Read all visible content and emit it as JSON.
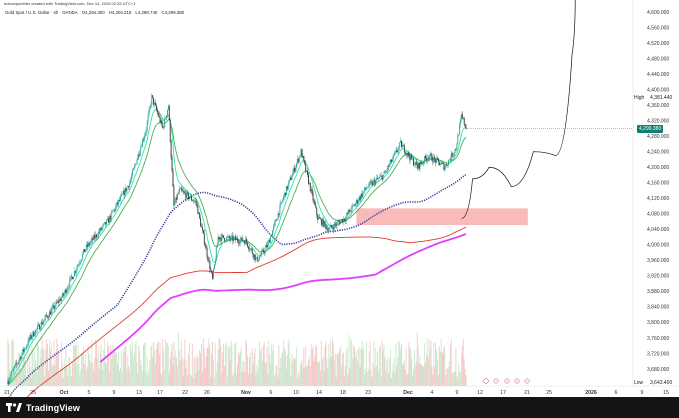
{
  "header": {
    "attribution": "bulvanpunthier created with TradingView.com, Dec 14, 2025 02:25 UTC+1",
    "symbol": "Gold Spot / U.S. Dollar · 4h · OANDA",
    "open": "O4,294.300",
    "high": "H4,304.215",
    "low": "L4,288.740",
    "close": "C4,299.380"
  },
  "footer": {
    "brand": "TradingView"
  },
  "price_labels": {
    "high_label": "High",
    "high_value": "4,381.440",
    "last_value": "4,299.380",
    "low_label": "Low",
    "low_value": "3,643.400"
  },
  "colors": {
    "up": "#26a69a",
    "down": "#333333",
    "ema_fast": "#4caf50",
    "ema_mid": "#2ee6a8",
    "ma_blue": "#3f3d9e",
    "ma_red": "#e53935",
    "ma_magenta": "#e040fb",
    "zone": "#f7a3a3",
    "last_tag": "#0f7f6f"
  },
  "chart_data": {
    "type": "candlestick",
    "title": "",
    "y_axis": {
      "range": [
        3643,
        4610
      ],
      "ticks": [
        "4,600.000",
        "4,560.000",
        "4,520.000",
        "4,480.000",
        "4,440.000",
        "4,400.000",
        "4,360.000",
        "4,320.000",
        "4,280.000",
        "4,240.000",
        "4,200.000",
        "4,160.000",
        "4,120.000",
        "4,080.000",
        "4,040.000",
        "4,000.000",
        "3,960.000",
        "3,920.000",
        "3,880.000",
        "3,840.000",
        "3,800.000",
        "3,760.000",
        "3,720.000",
        "3,680.000"
      ]
    },
    "x_axis": {
      "ticks": [
        "21",
        "25",
        "Oct",
        "5",
        "9",
        "13",
        "17",
        "22",
        "26",
        "Nov",
        "6",
        "10",
        "14",
        "18",
        "23",
        "Dec",
        "4",
        "9",
        "12",
        "17",
        "21",
        "25",
        "2026",
        "6",
        "9",
        "15"
      ]
    },
    "price_path": [
      [
        "Sep 21",
        3650
      ],
      [
        "Sep 25",
        3760
      ],
      [
        "Oct 1",
        3870
      ],
      [
        "Oct 5",
        3990
      ],
      [
        "Oct 9",
        4060
      ],
      [
        "Oct 13",
        4160
      ],
      [
        "Oct 16",
        4300
      ],
      [
        "Oct 17",
        4380
      ],
      [
        "Oct 19",
        4300
      ],
      [
        "Oct 20",
        4360
      ],
      [
        "Oct 21",
        4100
      ],
      [
        "Oct 22",
        4140
      ],
      [
        "Oct 25",
        4110
      ],
      [
        "Oct 28",
        3910
      ],
      [
        "Oct 29",
        4020
      ],
      [
        "Nov 3",
        4010
      ],
      [
        "Nov 5",
        3960
      ],
      [
        "Nov 7",
        4000
      ],
      [
        "Nov 10",
        4130
      ],
      [
        "Nov 13",
        4240
      ],
      [
        "Nov 16",
        4070
      ],
      [
        "Nov 18",
        4040
      ],
      [
        "Nov 21",
        4070
      ],
      [
        "Nov 25",
        4150
      ],
      [
        "Nov 28",
        4180
      ],
      [
        "Dec 1",
        4260
      ],
      [
        "Dec 4",
        4200
      ],
      [
        "Dec 6",
        4230
      ],
      [
        "Dec 9",
        4200
      ],
      [
        "Dec 11",
        4250
      ],
      [
        "Dec 12",
        4330
      ],
      [
        "Dec 13",
        4299
      ]
    ],
    "moving_averages": [
      {
        "color": "#3f3d9e",
        "style": "dotted"
      },
      {
        "color": "#e53935",
        "style": "solid"
      },
      {
        "color": "#e040fb",
        "style": "solid"
      },
      {
        "color": "#4caf50",
        "style": "solid"
      },
      {
        "color": "#2ee6a8",
        "style": "solid"
      }
    ],
    "annotations": [
      {
        "type": "rectangle",
        "price_range": [
          4051,
          4094
        ],
        "from": "Nov 23",
        "to": "Dec 24",
        "color": "#f7a3a3"
      },
      {
        "type": "projection",
        "points": [
          [
            "Dec 12",
            4068
          ],
          [
            "Dec 14",
            4170
          ],
          [
            "Dec 17",
            4200
          ],
          [
            "Dec 21",
            4150
          ],
          [
            "Dec 25",
            4240
          ],
          [
            "Dec 29",
            4230
          ],
          [
            "Jan 1",
            4490
          ]
        ]
      }
    ],
    "last_price": 4299.38,
    "high": 4381.44,
    "low": 3643.4,
    "grid": false
  }
}
